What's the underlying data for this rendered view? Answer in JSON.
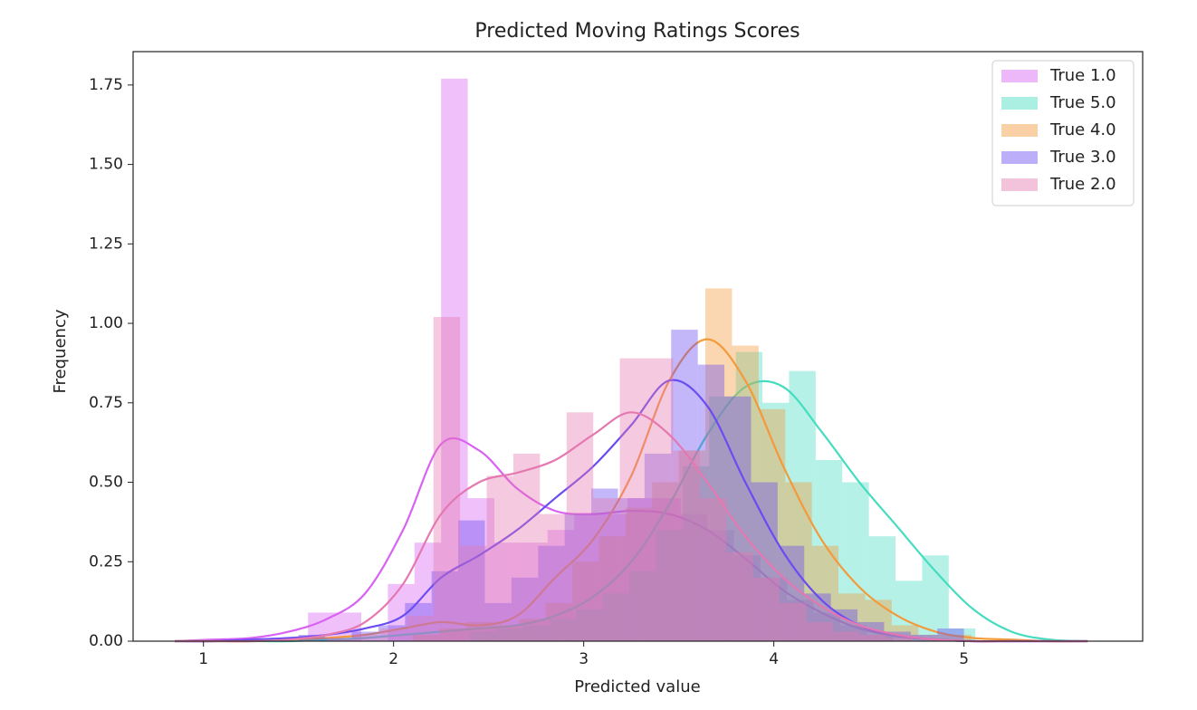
{
  "chart_data": {
    "type": "histogram",
    "title": "Predicted Moving Ratings Scores",
    "xlabel": "Predicted value",
    "ylabel": "Frequency",
    "xlim": [
      0.63,
      5.94
    ],
    "ylim": [
      0,
      1.855
    ],
    "xticks": [
      1,
      2,
      3,
      4,
      5
    ],
    "yticks": [
      {
        "value": 0,
        "label": "0.00"
      },
      {
        "value": 0.25,
        "label": "0.25"
      },
      {
        "value": 0.5,
        "label": "0.50"
      },
      {
        "value": 0.75,
        "label": "0.75"
      },
      {
        "value": 1,
        "label": "1.00"
      },
      {
        "value": 1.25,
        "label": "1.25"
      },
      {
        "value": 1.5,
        "label": "1.50"
      },
      {
        "value": 1.75,
        "label": "1.75"
      }
    ],
    "legend": "upper right",
    "kde_x": [
      0.85,
      1.05,
      1.25,
      1.45,
      1.65,
      1.85,
      2.05,
      2.25,
      2.45,
      2.65,
      2.85,
      3.05,
      3.25,
      3.45,
      3.65,
      3.85,
      4.05,
      4.25,
      4.45,
      4.65,
      4.85,
      5.05,
      5.25,
      5.45,
      5.65
    ],
    "series": [
      {
        "name": "True 1.0",
        "color": "#d862f2",
        "bins": [
          1.55,
          1.69,
          1.83,
          1.97,
          2.11,
          2.25,
          2.39,
          2.53,
          2.67,
          2.81,
          2.95,
          3.09,
          3.23,
          3.37,
          3.51,
          3.65,
          3.79,
          3.93,
          4.07,
          4.21,
          4.35,
          4.49,
          4.63
        ],
        "values": [
          0.09,
          0.09,
          0,
          0.18,
          0.31,
          1.77,
          0.45,
          0.31,
          0.31,
          0.35,
          0.4,
          0.4,
          0.45,
          0.45,
          0.4,
          0.35,
          0.27,
          0.2,
          0.13,
          0.09,
          0.05,
          0.02
        ],
        "kde_y": [
          0,
          0.005,
          0.01,
          0.03,
          0.07,
          0.15,
          0.35,
          0.62,
          0.6,
          0.48,
          0.41,
          0.4,
          0.41,
          0.4,
          0.35,
          0.26,
          0.16,
          0.09,
          0.04,
          0.015,
          0.005,
          0,
          0,
          0,
          0
        ]
      },
      {
        "name": "True 5.0",
        "color": "#45dcc0",
        "bins": [
          2.4,
          2.54,
          2.68,
          2.82,
          2.96,
          3.1,
          3.24,
          3.38,
          3.52,
          3.66,
          3.8,
          3.94,
          4.08,
          4.22,
          4.36,
          4.5,
          4.64,
          4.78,
          4.92,
          5.06
        ],
        "values": [
          0.03,
          0.04,
          0.05,
          0.07,
          0.1,
          0.15,
          0.22,
          0.35,
          0.55,
          0.77,
          0.91,
          0.75,
          0.85,
          0.57,
          0.5,
          0.33,
          0.19,
          0.27,
          0.04
        ],
        "kde_y": [
          0,
          0,
          0,
          0,
          0.005,
          0.01,
          0.02,
          0.03,
          0.04,
          0.05,
          0.08,
          0.14,
          0.25,
          0.43,
          0.65,
          0.8,
          0.8,
          0.66,
          0.5,
          0.36,
          0.22,
          0.1,
          0.03,
          0.005,
          0
        ]
      },
      {
        "name": "True 4.0",
        "color": "#f39a3a",
        "bins": [
          2.1,
          2.24,
          2.38,
          2.52,
          2.66,
          2.8,
          2.94,
          3.08,
          3.22,
          3.36,
          3.5,
          3.64,
          3.78,
          3.92,
          4.06,
          4.2,
          4.34,
          4.48,
          4.62,
          4.76,
          4.9,
          5.04
        ],
        "values": [
          0.02,
          0.04,
          0.06,
          0.05,
          0.07,
          0.12,
          0.25,
          0.33,
          0.42,
          0.5,
          0.6,
          1.11,
          0.93,
          0.73,
          0.5,
          0.3,
          0.15,
          0.13,
          0.05,
          0.02,
          0.02
        ],
        "kde_y": [
          0,
          0,
          0,
          0.005,
          0.01,
          0.02,
          0.04,
          0.06,
          0.05,
          0.08,
          0.2,
          0.32,
          0.52,
          0.82,
          0.95,
          0.82,
          0.55,
          0.32,
          0.17,
          0.08,
          0.03,
          0.01,
          0.005,
          0,
          0
        ]
      },
      {
        "name": "True 3.0",
        "color": "#6a4cf2",
        "bins": [
          1.5,
          1.64,
          1.78,
          1.92,
          2.06,
          2.2,
          2.34,
          2.48,
          2.62,
          2.76,
          2.9,
          3.04,
          3.18,
          3.32,
          3.46,
          3.6,
          3.74,
          3.88,
          4.02,
          4.16,
          4.3,
          4.44,
          4.58,
          4.72,
          4.86,
          5.0
        ],
        "values": [
          0.02,
          0.01,
          0.03,
          0.05,
          0.12,
          0.22,
          0.38,
          0.12,
          0.2,
          0.3,
          0.4,
          0.48,
          0.45,
          0.59,
          0.98,
          0.87,
          0.77,
          0.5,
          0.3,
          0.15,
          0.1,
          0.06,
          0.03,
          0.02,
          0.04
        ],
        "kde_y": [
          0,
          0,
          0.005,
          0.01,
          0.02,
          0.04,
          0.08,
          0.2,
          0.27,
          0.35,
          0.45,
          0.55,
          0.68,
          0.82,
          0.74,
          0.5,
          0.28,
          0.13,
          0.05,
          0.02,
          0.005,
          0,
          0,
          0,
          0
        ]
      },
      {
        "name": "True 2.0",
        "color": "#e578b0",
        "bins": [
          1.65,
          1.79,
          1.93,
          2.07,
          2.21,
          2.35,
          2.49,
          2.63,
          2.77,
          2.91,
          3.05,
          3.19,
          3.33,
          3.47,
          3.61,
          3.75,
          3.89,
          4.03,
          4.17,
          4.31,
          4.45,
          4.59,
          4.73
        ],
        "values": [
          0.01,
          0.02,
          0.04,
          0.08,
          1.02,
          0.3,
          0.52,
          0.59,
          0.4,
          0.72,
          0.45,
          0.89,
          0.89,
          0.6,
          0.45,
          0.28,
          0.2,
          0.12,
          0.06,
          0.03,
          0.02,
          0.01
        ],
        "kde_y": [
          0,
          0,
          0,
          0.005,
          0.02,
          0.06,
          0.18,
          0.4,
          0.5,
          0.53,
          0.57,
          0.65,
          0.72,
          0.65,
          0.5,
          0.33,
          0.2,
          0.11,
          0.05,
          0.02,
          0.005,
          0,
          0,
          0,
          0
        ]
      }
    ]
  }
}
